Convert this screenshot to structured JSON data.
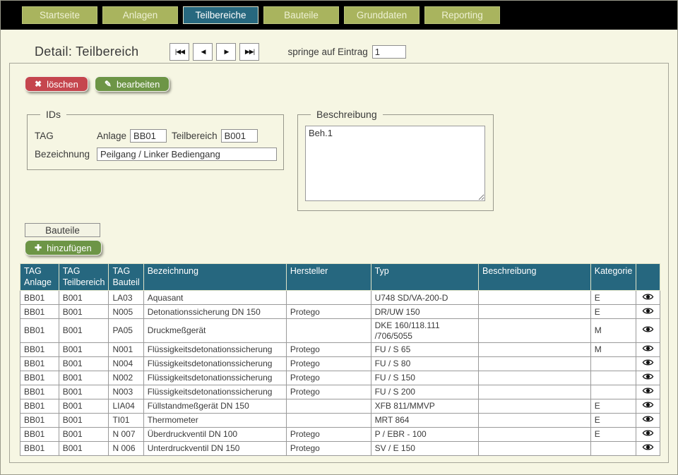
{
  "colors": {
    "page_background": "#f6f6e3",
    "nav_background": "#000000",
    "tab_inactive": "#a9b45e",
    "tab_active": "#27687f",
    "table_header": "#26677f",
    "delete_button": "#c5464e",
    "edit_button": "#6d9546"
  },
  "nav": {
    "tabs": [
      {
        "label": "Startseite",
        "active": false
      },
      {
        "label": "Anlagen",
        "active": false
      },
      {
        "label": "Teilbereiche",
        "active": true
      },
      {
        "label": "Bauteile",
        "active": false
      },
      {
        "label": "Grunddaten",
        "active": false
      },
      {
        "label": "Reporting",
        "active": false
      }
    ]
  },
  "header": {
    "title": "Detail: Teilbereich",
    "jump_label": "springe auf Eintrag",
    "jump_value": "1"
  },
  "icons": {
    "first": "|◀◀",
    "prev": "◀",
    "next": "▶",
    "last": "▶▶|",
    "delete": "✖",
    "edit": "✎",
    "add": "✚",
    "view": "eye-icon"
  },
  "actions": {
    "delete_label": "löschen",
    "edit_label": "bearbeiten"
  },
  "ids_group": {
    "legend": "IDs",
    "tag_label": "TAG",
    "anlage_label": "Anlage",
    "anlage_value": "BB01",
    "teilbereich_label": "Teilbereich",
    "teilbereich_value": "B001",
    "bezeichnung_label": "Bezeichnung",
    "bezeichnung_value": "Peilgang / Linker Bediengang"
  },
  "beschreibung_group": {
    "legend": "Beschreibung",
    "value": "Beh.1"
  },
  "bauteile_section": {
    "section_label": "Bauteile",
    "add_label": "hinzufügen"
  },
  "table": {
    "columns": [
      "TAG Anlage",
      "TAG Teilbereich",
      "TAG Bauteil",
      "Bezeichnung",
      "Hersteller",
      "Typ",
      "Beschreibung",
      "Kategorie",
      ""
    ],
    "rows": [
      [
        "BB01",
        "B001",
        "LA03",
        "Aquasant",
        "",
        "U748 SD/VA-200-D",
        "",
        "E"
      ],
      [
        "BB01",
        "B001",
        "N005",
        "Detonationssicherung DN 150",
        "Protego",
        "DR/UW 150",
        "",
        "E"
      ],
      [
        "BB01",
        "B001",
        "PA05",
        "Druckmeßgerät",
        "",
        "DKE 160/118.111 /706/5055",
        "",
        "M"
      ],
      [
        "BB01",
        "B001",
        "N001",
        "Flüssigkeitsdetonationssicherung",
        "Protego",
        "FU / S 65",
        "",
        "M"
      ],
      [
        "BB01",
        "B001",
        "N004",
        "Flüssigkeitsdetonationssicherung",
        "Protego",
        "FU / S 80",
        "",
        ""
      ],
      [
        "BB01",
        "B001",
        "N002",
        "Flüssigkeitsdetonationssicherung",
        "Protego",
        "FU / S 150",
        "",
        ""
      ],
      [
        "BB01",
        "B001",
        "N003",
        "Flüssigkeitsdetonationssicherung",
        "Protego",
        "FU / S 200",
        "",
        ""
      ],
      [
        "BB01",
        "B001",
        "LIA04",
        "Füllstandmeßgerät DN 150",
        "",
        "XFB 811/MMVP",
        "",
        "E"
      ],
      [
        "BB01",
        "B001",
        "TI01",
        "Thermometer",
        "",
        "MRT 864",
        "",
        "E"
      ],
      [
        "BB01",
        "B001",
        "N 007",
        "Überdruckventil DN 100",
        "Protego",
        "P / EBR - 100",
        "",
        "E"
      ],
      [
        "BB01",
        "B001",
        "N 006",
        "Unterdruckventil DN 150",
        "Protego",
        "SV / E 150",
        "",
        ""
      ]
    ]
  }
}
